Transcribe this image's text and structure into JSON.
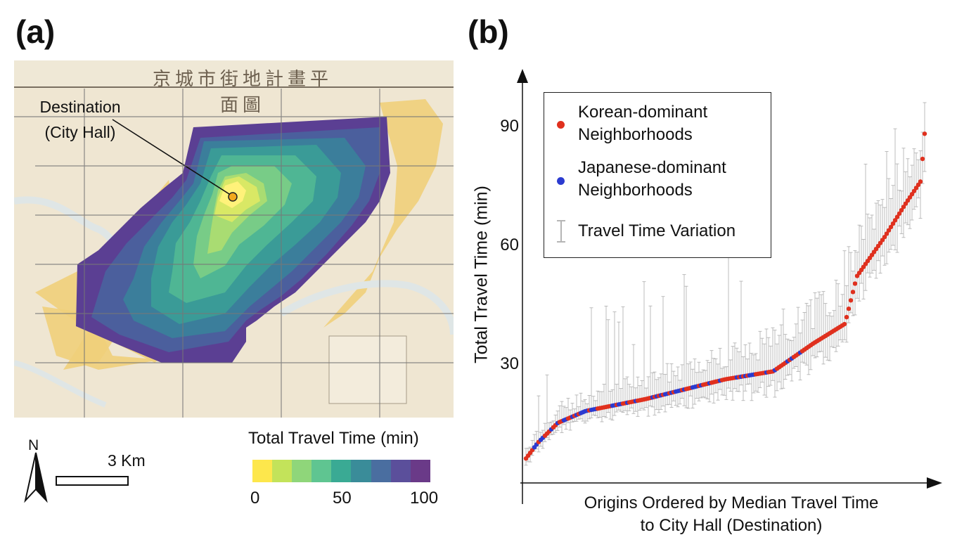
{
  "panel_a": {
    "label": "(a)",
    "map_title": "京城市街地計畫平面圖",
    "destination_line1": "Destination",
    "destination_line2": "(City Hall)",
    "north_label": "N",
    "scale_label": "3 Km",
    "colorbar": {
      "title": "Total Travel Time (min)",
      "ticks": [
        "0",
        "50",
        "100"
      ],
      "colors": [
        "#fde74c",
        "#c3e35a",
        "#8fd67a",
        "#5fc591",
        "#3aaa94",
        "#3a8c99",
        "#4a6ea0",
        "#5b4f9b",
        "#6a3a88"
      ]
    },
    "map_colors": {
      "paper": "#efe6d2",
      "urban": "#f0cf7a",
      "river": "#dfe6e6",
      "grid": "#777777",
      "band_0": "#fff27a",
      "band_1": "#d9e865",
      "band_2": "#a9dc72",
      "band_3": "#78cc87",
      "band_4": "#4fb694",
      "band_5": "#3a9b97",
      "band_6": "#3b7e9b",
      "band_7": "#4b5f9d",
      "band_8": "#5b3f93",
      "destination_marker": "#f2a81d"
    }
  },
  "panel_b": {
    "label": "(b)",
    "legend": {
      "korean_line1": "Korean-dominant",
      "korean_line2": "Neighborhoods",
      "japanese_line1": "Japanese-dominant",
      "japanese_line2": "Neighborhoods",
      "variation": "Travel Time Variation"
    }
  },
  "chart_data": {
    "type": "scatter",
    "title": "",
    "xlabel": "Origins Ordered by Median Travel Time to City Hall (Destination)",
    "ylabel": "Total Travel Time (min)",
    "yticks": [
      30,
      60,
      90
    ],
    "ylim": [
      0,
      100
    ],
    "x_ticks_shown": false,
    "grid": false,
    "legend_position": "top-left",
    "colors": {
      "korean": "#e0301e",
      "japanese": "#2b3bd0",
      "error_bar": "#b5b5b5",
      "axis": "#111111"
    },
    "series": [
      {
        "name": "Korean-dominant Neighborhoods",
        "marker": "dot"
      },
      {
        "name": "Japanese-dominant Neighborhoods",
        "marker": "dot"
      },
      {
        "name": "Travel Time Variation",
        "marker": "error-bar"
      }
    ],
    "curve_profile": {
      "n_points": 190,
      "percentile_points": [
        [
          0,
          6
        ],
        [
          0.03,
          10
        ],
        [
          0.08,
          15
        ],
        [
          0.15,
          18
        ],
        [
          0.3,
          21
        ],
        [
          0.5,
          26
        ],
        [
          0.62,
          28
        ],
        [
          0.72,
          35
        ],
        [
          0.8,
          40
        ],
        [
          0.83,
          52
        ],
        [
          0.9,
          62
        ],
        [
          0.95,
          70
        ],
        [
          0.99,
          76
        ],
        [
          1.0,
          88
        ]
      ],
      "japanese_fraction": 0.22
    }
  }
}
